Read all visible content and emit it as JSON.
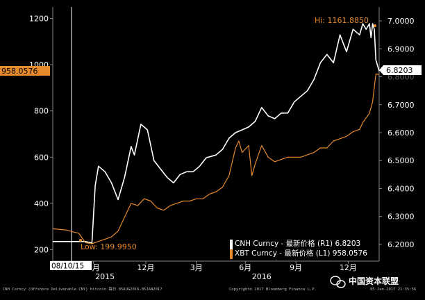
{
  "chart_data": {
    "type": "line",
    "title": "",
    "x_axis": {
      "tick_labels": [
        "9月",
        "12月",
        "3月",
        "6月",
        "9月",
        "12月"
      ],
      "year_labels": [
        "2015",
        "2016"
      ],
      "cursor_date": "08/10/15"
    },
    "y_left": {
      "label": "",
      "ylim": [
        150,
        1250
      ],
      "ticks": [
        200,
        400,
        600,
        800,
        1000,
        1200
      ]
    },
    "y_right": {
      "label": "",
      "ylim": [
        6.14,
        7.05
      ],
      "ticks": [
        "6.2000",
        "6.3000",
        "6.4000",
        "6.5000",
        "6.6000",
        "6.7000",
        "6.8000",
        "6.9000",
        "7.0000"
      ]
    },
    "grid": false,
    "legend_position": "bottom-right",
    "series": [
      {
        "name": "CNH Curncy - 最新价格 (R1) 6.8203",
        "axis": "right",
        "color": "#ffffff",
        "last_value_label": "6.8203",
        "x": [
          0.0,
          0.1,
          0.12,
          0.13,
          0.14,
          0.16,
          0.18,
          0.2,
          0.22,
          0.24,
          0.25,
          0.27,
          0.29,
          0.31,
          0.33,
          0.35,
          0.37,
          0.39,
          0.41,
          0.43,
          0.45,
          0.47,
          0.5,
          0.52,
          0.54,
          0.56,
          0.58,
          0.6,
          0.62,
          0.64,
          0.66,
          0.68,
          0.7,
          0.72,
          0.74,
          0.76,
          0.78,
          0.8,
          0.82,
          0.84,
          0.86,
          0.88,
          0.9,
          0.92,
          0.94,
          0.95,
          0.96,
          0.97,
          0.975,
          0.98,
          0.985,
          0.99,
          1.0
        ],
        "values": [
          6.21,
          6.21,
          6.205,
          6.41,
          6.48,
          6.46,
          6.42,
          6.36,
          6.44,
          6.55,
          6.52,
          6.63,
          6.61,
          6.5,
          6.47,
          6.44,
          6.42,
          6.45,
          6.46,
          6.46,
          6.48,
          6.51,
          6.52,
          6.54,
          6.58,
          6.6,
          6.61,
          6.62,
          6.64,
          6.69,
          6.66,
          6.65,
          6.67,
          6.67,
          6.71,
          6.73,
          6.75,
          6.79,
          6.85,
          6.88,
          6.85,
          6.95,
          6.89,
          6.97,
          6.95,
          6.99,
          6.97,
          6.99,
          6.94,
          6.99,
          6.97,
          6.86,
          6.8203
        ]
      },
      {
        "name": "XBT Curncy - 最新价格 (L1) 958.0576",
        "axis": "left",
        "color": "#e68a2e",
        "last_value_label": "958.0576",
        "x": [
          0.0,
          0.04,
          0.08,
          0.1,
          0.12,
          0.14,
          0.16,
          0.18,
          0.2,
          0.22,
          0.24,
          0.26,
          0.28,
          0.3,
          0.32,
          0.34,
          0.36,
          0.38,
          0.4,
          0.42,
          0.44,
          0.46,
          0.48,
          0.5,
          0.52,
          0.54,
          0.56,
          0.57,
          0.58,
          0.6,
          0.61,
          0.62,
          0.64,
          0.66,
          0.68,
          0.7,
          0.72,
          0.74,
          0.76,
          0.78,
          0.8,
          0.82,
          0.84,
          0.86,
          0.88,
          0.9,
          0.92,
          0.94,
          0.95,
          0.96,
          0.97,
          0.98,
          0.99,
          1.0
        ],
        "values": [
          290,
          285,
          270,
          230,
          225,
          235,
          245,
          255,
          280,
          340,
          400,
          390,
          420,
          410,
          380,
          370,
          390,
          400,
          410,
          410,
          420,
          420,
          440,
          450,
          470,
          520,
          640,
          670,
          620,
          650,
          520,
          570,
          650,
          600,
          580,
          590,
          600,
          600,
          600,
          610,
          620,
          640,
          640,
          670,
          680,
          690,
          710,
          720,
          750,
          770,
          790,
          840,
          960,
          958.0576
        ]
      },
      {
        "name": "Hi",
        "annotations": [
          {
            "label": "Hi: 1161.8850",
            "series": "XBT",
            "value": 1161.885
          },
          {
            "label": "Low: 199.9950",
            "series": "XBT",
            "value": 199.995
          }
        ]
      }
    ]
  },
  "left_tag": "958.0576",
  "right_tag": "6.8203",
  "footer": {
    "left": "CNH Curncy (Offshore Deliverable CNY) bitcoin  每日 05AUG2016-05JAN2017",
    "right": "Copyright© 2017 Bloomberg Finance L.P.",
    "date": "05-Jan-2017 21:35:56"
  },
  "watermark": {
    "icon": "wechat-icon",
    "text": "中国资本联盟"
  }
}
